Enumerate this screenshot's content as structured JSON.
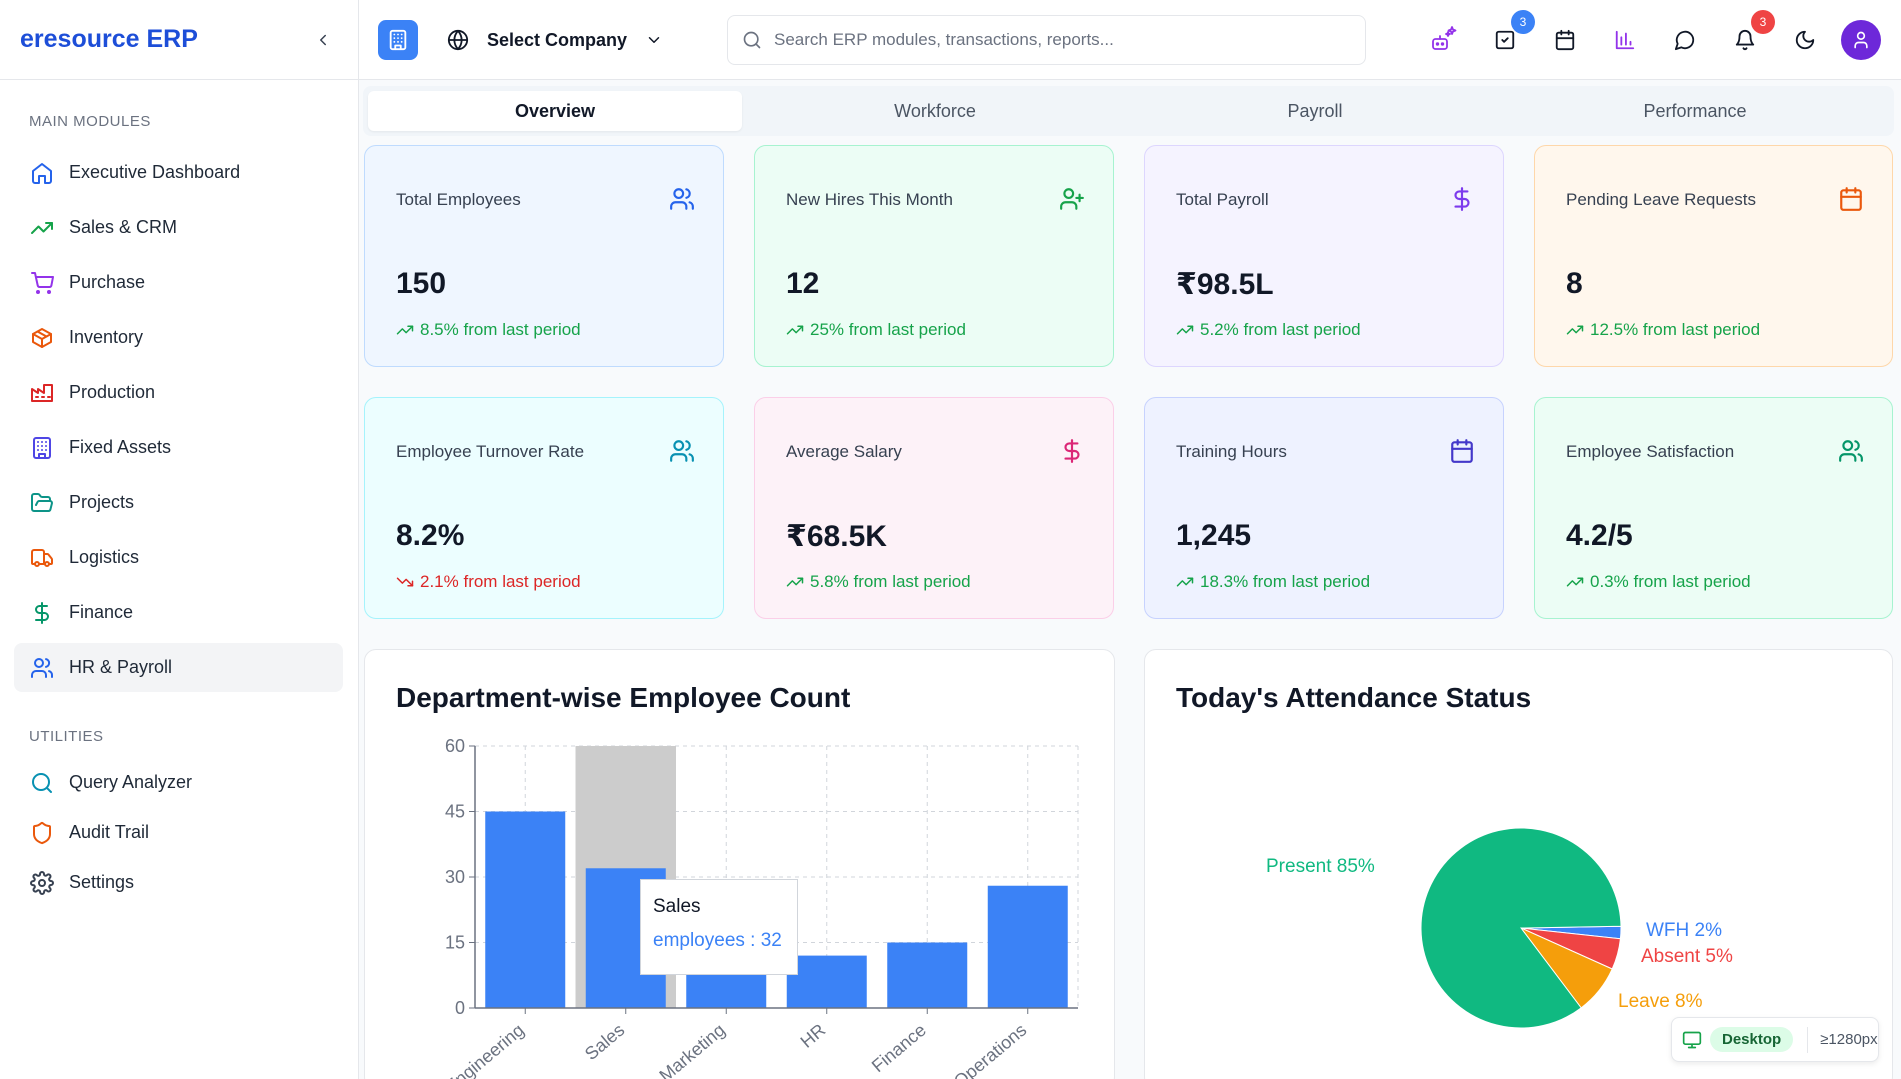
{
  "brand": "eresource ERP",
  "sidebar": {
    "main_label": "MAIN MODULES",
    "utilities_label": "UTILITIES",
    "items": [
      {
        "label": "Executive Dashboard",
        "icon": "home-icon",
        "color": "#2563eb"
      },
      {
        "label": "Sales & CRM",
        "icon": "trending-up-icon",
        "color": "#16a34a"
      },
      {
        "label": "Purchase",
        "icon": "shopping-cart-icon",
        "color": "#9333ea"
      },
      {
        "label": "Inventory",
        "icon": "package-icon",
        "color": "#ea580c"
      },
      {
        "label": "Production",
        "icon": "factory-icon",
        "color": "#dc2626"
      },
      {
        "label": "Fixed Assets",
        "icon": "building-icon",
        "color": "#4f46e5"
      },
      {
        "label": "Projects",
        "icon": "folder-open-icon",
        "color": "#0d9488"
      },
      {
        "label": "Logistics",
        "icon": "truck-icon",
        "color": "#ea580c"
      },
      {
        "label": "Finance",
        "icon": "dollar-icon",
        "color": "#059669"
      },
      {
        "label": "HR & Payroll",
        "icon": "users-icon",
        "color": "#2563eb",
        "active": true
      }
    ],
    "utilities": [
      {
        "label": "Query Analyzer",
        "icon": "search-icon",
        "color": "#0891b2"
      },
      {
        "label": "Audit Trail",
        "icon": "shield-icon",
        "color": "#ea580c"
      },
      {
        "label": "Settings",
        "icon": "gear-icon",
        "color": "#374151"
      }
    ]
  },
  "topbar": {
    "company_label": "Select Company",
    "search_placeholder": "Search ERP modules, transactions, reports...",
    "tasks_badge": "3",
    "notifications_badge": "3"
  },
  "tabs": [
    "Overview",
    "Workforce",
    "Payroll",
    "Performance"
  ],
  "active_tab": "Overview",
  "kpis": [
    {
      "title": "Total Employees",
      "value": "150",
      "trend": "8.5% from last period",
      "direction": "up",
      "icon": "users-icon"
    },
    {
      "title": "New Hires This Month",
      "value": "12",
      "trend": "25% from last period",
      "direction": "up",
      "icon": "user-plus-icon"
    },
    {
      "title": "Total Payroll",
      "value": "₹98.5L",
      "trend": "5.2% from last period",
      "direction": "up",
      "icon": "dollar-icon"
    },
    {
      "title": "Pending Leave Requests",
      "value": "8",
      "trend": "12.5% from last period",
      "direction": "up",
      "icon": "calendar-icon"
    },
    {
      "title": "Employee Turnover Rate",
      "value": "8.2%",
      "trend": "2.1% from last period",
      "direction": "down",
      "icon": "users-icon"
    },
    {
      "title": "Average Salary",
      "value": "₹68.5K",
      "trend": "5.8% from last period",
      "direction": "up",
      "icon": "dollar-icon"
    },
    {
      "title": "Training Hours",
      "value": "1,245",
      "trend": "18.3% from last period",
      "direction": "up",
      "icon": "calendar-icon"
    },
    {
      "title": "Employee Satisfaction",
      "value": "4.2/5",
      "trend": "0.3% from last period",
      "direction": "up",
      "icon": "users-icon"
    }
  ],
  "dept_chart": {
    "title": "Department-wise Employee Count",
    "tooltip_category": "Sales",
    "tooltip_text": "employees : 32"
  },
  "attendance_chart": {
    "title": "Today's Attendance Status"
  },
  "viewport_badge": {
    "label": "Desktop",
    "breakpoint": "≥1280px"
  },
  "chart_data": [
    {
      "type": "bar",
      "title": "Department-wise Employee Count",
      "categories": [
        "Engineering",
        "Sales",
        "Marketing",
        "HR",
        "Finance",
        "Operations"
      ],
      "series": [
        {
          "name": "employees",
          "values": [
            45,
            32,
            15,
            12,
            15,
            28
          ]
        }
      ],
      "yticks": [
        0,
        15,
        30,
        45,
        60
      ],
      "ylim": [
        0,
        60
      ],
      "color": "#3b82f6",
      "grid": true,
      "highlighted_category": "Sales"
    },
    {
      "type": "pie",
      "title": "Today's Attendance Status",
      "labels": [
        "Present",
        "WFH",
        "Absent",
        "Leave"
      ],
      "values": [
        85,
        2,
        5,
        8
      ],
      "label_text": [
        "Present 85%",
        "WFH 2%",
        "Absent 5%",
        "Leave 8%"
      ],
      "colors": [
        "#10b981",
        "#3b82f6",
        "#ef4444",
        "#f59e0b"
      ]
    }
  ]
}
